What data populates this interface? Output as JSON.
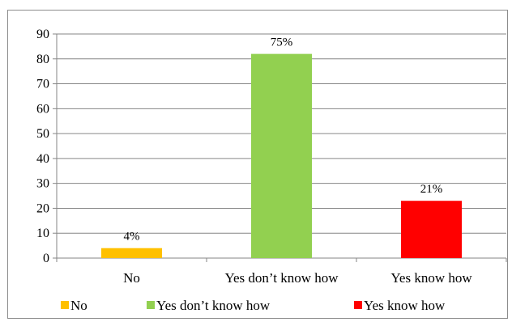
{
  "chart_data": {
    "type": "bar",
    "categories": [
      "No",
      "Yes don’t know how",
      "Yes know how"
    ],
    "values": [
      4,
      82,
      23
    ],
    "data_labels": [
      "4%",
      "75%",
      "21%"
    ],
    "colors": [
      "#FFC000",
      "#92D050",
      "#FF0000"
    ],
    "ylim": [
      0,
      90
    ],
    "yticks": [
      0,
      10,
      20,
      30,
      40,
      50,
      60,
      70,
      80,
      90
    ],
    "grid": true,
    "legend_position": "bottom",
    "legend": [
      "No",
      "Yes don’t know how",
      "Yes know how"
    ]
  }
}
